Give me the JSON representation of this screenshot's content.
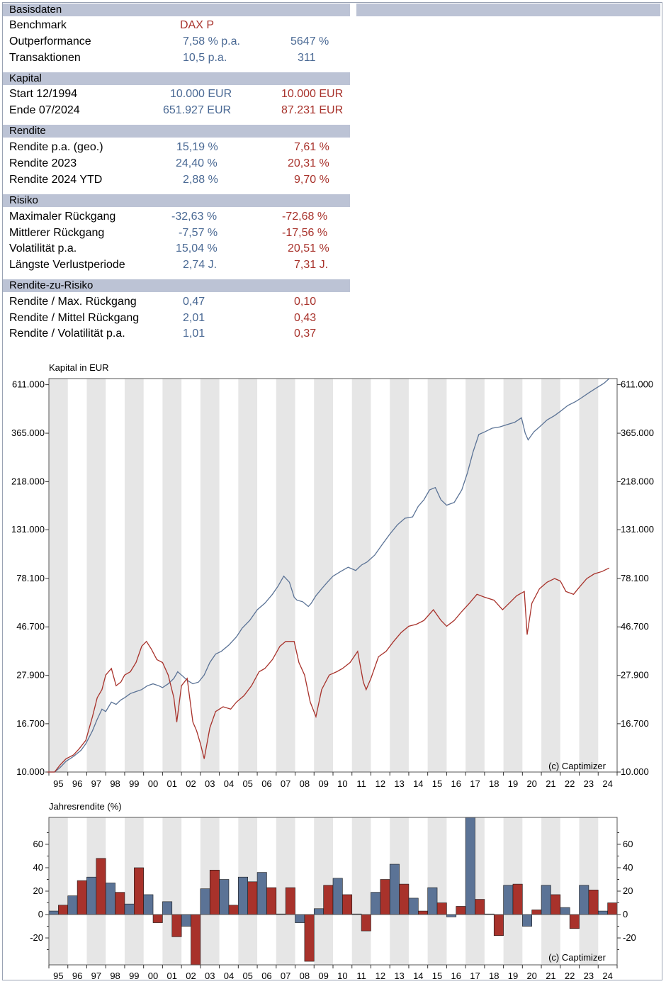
{
  "colors": {
    "blue": "#5b7396",
    "red": "#a8322b",
    "header_bg": "#bcc3d5",
    "band": "#e6e6e6"
  },
  "sections": {
    "basis": {
      "title": "Basisdaten",
      "benchmark_label": "Benchmark",
      "benchmark_value": "DAX P",
      "outperf_label": "Outperformance",
      "outperf_pa": "7,58 % p.a.",
      "outperf_total": "5647 %",
      "trans_label": "Transaktionen",
      "trans_pa": "10,5 p.a.",
      "trans_total": "311"
    },
    "kapital": {
      "title": "Kapital",
      "start_label": "Start  12/1994",
      "start_strategy": "10.000 EUR",
      "start_benchmark": "10.000 EUR",
      "end_label": "Ende 07/2024",
      "end_strategy": "651.927 EUR",
      "end_benchmark": "87.231 EUR"
    },
    "rendite": {
      "title": "Rendite",
      "rows": [
        {
          "label": "Rendite p.a. (geo.)",
          "strategy": "15,19 %",
          "benchmark": "7,61 %"
        },
        {
          "label": "Rendite 2023",
          "strategy": "24,40 %",
          "benchmark": "20,31 %"
        },
        {
          "label": "Rendite 2024 YTD",
          "strategy": "2,88 %",
          "benchmark": "9,70 %"
        }
      ]
    },
    "risiko": {
      "title": "Risiko",
      "rows": [
        {
          "label": "Maximaler Rückgang",
          "strategy": "-32,63 %",
          "benchmark": "-72,68 %"
        },
        {
          "label": "Mittlerer Rückgang",
          "strategy": "-7,57 %",
          "benchmark": "-17,56 %"
        },
        {
          "label": "Volatilität p.a.",
          "strategy": "15,04 %",
          "benchmark": "20,51 %"
        },
        {
          "label": "Längste Verlustperiode",
          "strategy": "2,74 J.",
          "benchmark": "7,31 J."
        }
      ]
    },
    "rzr": {
      "title": "Rendite-zu-Risiko",
      "rows": [
        {
          "label": "Rendite / Max. Rückgang",
          "strategy": "0,47",
          "benchmark": "0,10"
        },
        {
          "label": "Rendite / Mittel Rückgang",
          "strategy": "2,01",
          "benchmark": "0,43"
        },
        {
          "label": "Rendite / Volatilität p.a.",
          "strategy": "1,01",
          "benchmark": "0,37"
        }
      ]
    }
  },
  "chart_data": [
    {
      "type": "line",
      "title": "Kapital in EUR",
      "watermark": "(c) Captimizer",
      "yscale": "log",
      "yticks": [
        "10.000",
        "16.700",
        "27.900",
        "46.700",
        "78.100",
        "131.000",
        "218.000",
        "365.000",
        "611.000"
      ],
      "ytick_values": [
        10000,
        16700,
        27900,
        46700,
        78100,
        131000,
        218000,
        365000,
        611000
      ],
      "xticks": [
        "95",
        "96",
        "97",
        "98",
        "99",
        "00",
        "01",
        "02",
        "03",
        "04",
        "05",
        "06",
        "07",
        "08",
        "09",
        "10",
        "11",
        "12",
        "13",
        "14",
        "15",
        "16",
        "17",
        "18",
        "19",
        "20",
        "21",
        "22",
        "23",
        "24"
      ],
      "ylim": [
        10000,
        651927
      ],
      "series": [
        {
          "name": "Strategie",
          "color": "#5b7396",
          "x": [
            1994.92,
            1995.3,
            1995.6,
            1995.9,
            1996.3,
            1996.7,
            1996.95,
            1997.3,
            1997.55,
            1997.8,
            1998.0,
            1998.3,
            1998.55,
            1998.8,
            1999.0,
            1999.3,
            1999.6,
            1999.9,
            2000.2,
            2000.5,
            2000.8,
            2001.0,
            2001.3,
            2001.6,
            2001.8,
            2002.0,
            2002.3,
            2002.6,
            2002.9,
            2003.2,
            2003.5,
            2003.8,
            2004.1,
            2004.5,
            2004.9,
            2005.2,
            2005.6,
            2006.0,
            2006.4,
            2006.8,
            2007.1,
            2007.4,
            2007.7,
            2007.95,
            2008.1,
            2008.4,
            2008.7,
            2008.85,
            2009.1,
            2009.4,
            2009.7,
            2010.0,
            2010.4,
            2010.8,
            2011.2,
            2011.5,
            2011.8,
            2012.2,
            2012.6,
            2013.0,
            2013.4,
            2013.8,
            2014.2,
            2014.5,
            2014.8,
            2015.1,
            2015.4,
            2015.7,
            2016.0,
            2016.4,
            2016.8,
            2017.1,
            2017.4,
            2017.7,
            2018.0,
            2018.4,
            2018.8,
            2019.2,
            2019.6,
            2019.95,
            2020.15,
            2020.3,
            2020.6,
            2020.9,
            2021.3,
            2021.7,
            2022.0,
            2022.4,
            2022.8,
            2023.1,
            2023.5,
            2023.9,
            2024.3,
            2024.58
          ],
          "y": [
            10000,
            9800,
            10500,
            11200,
            11800,
            12600,
            13500,
            15500,
            17500,
            19500,
            19000,
            21000,
            20500,
            21500,
            22000,
            23000,
            23500,
            24000,
            25000,
            25500,
            25000,
            24500,
            25500,
            27000,
            29000,
            28000,
            26500,
            25500,
            26000,
            28000,
            32000,
            35000,
            36000,
            38500,
            42000,
            46000,
            50000,
            56000,
            60000,
            66000,
            72000,
            80000,
            75000,
            64000,
            62000,
            61000,
            58000,
            60000,
            65000,
            70000,
            75000,
            80000,
            84000,
            88000,
            85000,
            90000,
            93000,
            100000,
            112000,
            125000,
            138000,
            148000,
            150000,
            168000,
            180000,
            200000,
            205000,
            180000,
            170000,
            175000,
            200000,
            240000,
            300000,
            360000,
            370000,
            385000,
            390000,
            400000,
            410000,
            430000,
            365000,
            340000,
            370000,
            390000,
            420000,
            440000,
            460000,
            490000,
            510000,
            530000,
            560000,
            590000,
            620000,
            651927
          ]
        },
        {
          "name": "DAX P",
          "color": "#a8322b",
          "x": [
            1994.92,
            1995.3,
            1995.6,
            1995.9,
            1996.3,
            1996.6,
            1996.95,
            1997.3,
            1997.55,
            1997.8,
            1998.0,
            1998.3,
            1998.55,
            1998.8,
            1999.0,
            1999.3,
            1999.6,
            1999.9,
            2000.15,
            2000.4,
            2000.7,
            2001.0,
            2001.3,
            2001.6,
            2001.75,
            2002.0,
            2002.3,
            2002.6,
            2002.8,
            2003.0,
            2003.2,
            2003.5,
            2003.8,
            2004.2,
            2004.6,
            2004.9,
            2005.3,
            2005.7,
            2006.1,
            2006.4,
            2006.8,
            2007.2,
            2007.5,
            2007.95,
            2008.2,
            2008.5,
            2008.8,
            2009.1,
            2009.4,
            2009.8,
            2010.2,
            2010.5,
            2010.9,
            2011.3,
            2011.6,
            2011.75,
            2012.0,
            2012.4,
            2012.8,
            2013.2,
            2013.6,
            2014.0,
            2014.4,
            2014.8,
            2015.3,
            2015.7,
            2016.0,
            2016.4,
            2016.8,
            2017.2,
            2017.6,
            2018.0,
            2018.5,
            2018.95,
            2019.3,
            2019.7,
            2020.1,
            2020.25,
            2020.5,
            2020.9,
            2021.3,
            2021.7,
            2022.0,
            2022.3,
            2022.7,
            2023.0,
            2023.4,
            2023.8,
            2024.2,
            2024.58
          ],
          "y": [
            10000,
            9600,
            10800,
            11500,
            12000,
            12800,
            14000,
            18000,
            22000,
            24000,
            28000,
            30000,
            25000,
            26000,
            28000,
            29000,
            32000,
            38000,
            40000,
            37000,
            33000,
            32000,
            28000,
            22000,
            17000,
            25000,
            27000,
            17000,
            15500,
            13500,
            11500,
            16000,
            19000,
            20000,
            19500,
            21000,
            22500,
            25000,
            29000,
            30000,
            33000,
            38000,
            40000,
            40000,
            32000,
            28000,
            21000,
            18000,
            24000,
            28000,
            29000,
            30000,
            32000,
            36000,
            26000,
            24000,
            27000,
            34000,
            36000,
            40000,
            44000,
            47000,
            48000,
            50000,
            56000,
            50000,
            47000,
            50000,
            55000,
            60000,
            66000,
            64000,
            62000,
            56000,
            60000,
            65000,
            68000,
            43000,
            60000,
            70000,
            75000,
            78000,
            76000,
            68000,
            66000,
            71000,
            78000,
            82000,
            84000,
            87231
          ]
        }
      ]
    },
    {
      "type": "bar",
      "title": "Jahresrendite (%)",
      "watermark": "(c) Captimizer",
      "categories": [
        "95",
        "96",
        "97",
        "98",
        "99",
        "00",
        "01",
        "02",
        "03",
        "04",
        "05",
        "06",
        "07",
        "08",
        "09",
        "10",
        "11",
        "12",
        "13",
        "14",
        "15",
        "16",
        "17",
        "18",
        "19",
        "20",
        "21",
        "22",
        "23",
        "24"
      ],
      "yticks": [
        "-20",
        "0",
        "20",
        "40",
        "60"
      ],
      "ylim": [
        -43,
        83
      ],
      "series": [
        {
          "name": "Strategie",
          "color": "#5b7396",
          "values": [
            3,
            16,
            32,
            27,
            9,
            17,
            11,
            -10,
            22,
            30,
            32,
            36,
            0.5,
            -7,
            5,
            31,
            0.5,
            19,
            43,
            14,
            23,
            -2,
            83,
            0.5,
            25,
            -10,
            25,
            6,
            25,
            3
          ]
        },
        {
          "name": "DAX P",
          "color": "#a8322b",
          "values": [
            8,
            29,
            48,
            19,
            40,
            -7,
            -19,
            -43,
            38,
            8,
            28,
            23,
            23,
            -40,
            25,
            17,
            -14,
            30,
            26,
            3,
            10,
            7,
            13,
            -18,
            26,
            4,
            17,
            -12,
            21,
            10
          ]
        }
      ]
    }
  ]
}
